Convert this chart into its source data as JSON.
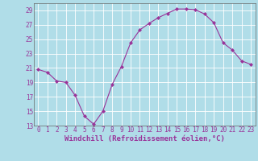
{
  "x": [
    0,
    1,
    2,
    3,
    4,
    5,
    6,
    7,
    8,
    9,
    10,
    11,
    12,
    13,
    14,
    15,
    16,
    17,
    18,
    19,
    20,
    21,
    22,
    23
  ],
  "y": [
    20.8,
    20.4,
    19.2,
    19.0,
    17.2,
    14.3,
    13.2,
    15.0,
    18.7,
    21.2,
    24.5,
    26.3,
    27.2,
    28.0,
    28.6,
    29.2,
    29.2,
    29.1,
    28.5,
    27.3,
    24.5,
    23.5,
    22.0,
    21.5
  ],
  "line_color": "#993399",
  "marker": "D",
  "marker_size": 2.0,
  "bg_color": "#b0dde8",
  "grid_color": "#ffffff",
  "xlabel": "Windchill (Refroidissement éolien,°C)",
  "ylim": [
    13,
    30
  ],
  "xlim_min": -0.5,
  "xlim_max": 23.5,
  "yticks": [
    13,
    15,
    17,
    19,
    21,
    23,
    25,
    27,
    29
  ],
  "xticks": [
    0,
    1,
    2,
    3,
    4,
    5,
    6,
    7,
    8,
    9,
    10,
    11,
    12,
    13,
    14,
    15,
    16,
    17,
    18,
    19,
    20,
    21,
    22,
    23
  ],
  "tick_label_size": 5.5,
  "xlabel_size": 6.5,
  "label_color": "#993399",
  "spine_color": "#666666",
  "linewidth": 0.8
}
